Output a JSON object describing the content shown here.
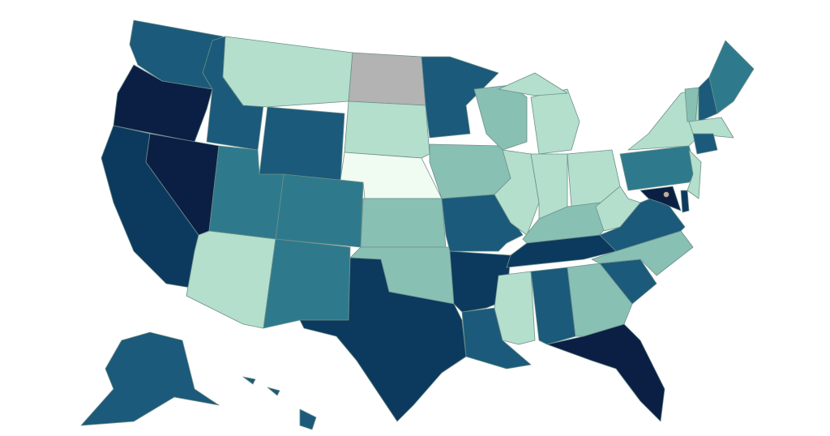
{
  "map": {
    "background": "#ffffff",
    "border": "#6e8f8a",
    "fills": [
      "#1b5a7a",
      "#0b1f45",
      "#0c3a5e",
      "#0b1f45",
      "#1b5a7a",
      "#b3dfcc",
      "#1b5a7a",
      "#2e7a8c",
      "#2e7a8c",
      "#b3dfcc",
      "#2e7a8c",
      "#b3b3b3",
      "#b3dfcc",
      "#f0fbf2",
      "#88c0b4",
      "#88c0b4",
      "#0c3a5e",
      "#1b5a7a",
      "#88c0b4",
      "#1b5a7a",
      "#0c3a5e",
      "#1b5a7a",
      "#88c0b4",
      "#b3dfcc",
      "#b3dfcc",
      "#b3dfcc",
      "#b3dfcc",
      "#b3dfcc",
      "#88c0b4",
      "#0c3a5e",
      "#b3dfcc",
      "#1b5a7a",
      "#88c0b4",
      "#0b1f45",
      "#1b5a7a",
      "#88c0b4",
      "#1b5a7a",
      "#b3dfcc",
      "#2e7a8c",
      "#b3dfcc",
      "#88c0b4",
      "#1b5a7a",
      "#2e7a8c",
      "#b3dfcc",
      "#1b5a7a",
      "#b3dfcc",
      "#0b1f45",
      "#0c3a5e",
      "#1b5a7a",
      "#1b5a7a"
    ]
  }
}
